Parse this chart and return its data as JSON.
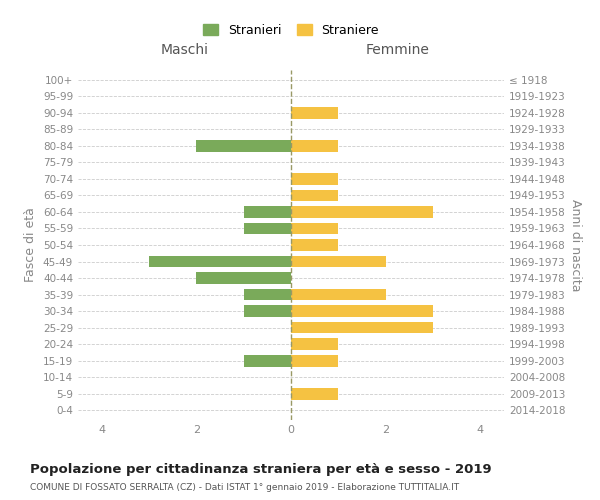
{
  "age_groups": [
    "0-4",
    "5-9",
    "10-14",
    "15-19",
    "20-24",
    "25-29",
    "30-34",
    "35-39",
    "40-44",
    "45-49",
    "50-54",
    "55-59",
    "60-64",
    "65-69",
    "70-74",
    "75-79",
    "80-84",
    "85-89",
    "90-94",
    "95-99",
    "100+"
  ],
  "birth_years": [
    "2014-2018",
    "2009-2013",
    "2004-2008",
    "1999-2003",
    "1994-1998",
    "1989-1993",
    "1984-1988",
    "1979-1983",
    "1974-1978",
    "1969-1973",
    "1964-1968",
    "1959-1963",
    "1954-1958",
    "1949-1953",
    "1944-1948",
    "1939-1943",
    "1934-1938",
    "1929-1933",
    "1924-1928",
    "1919-1923",
    "≤ 1918"
  ],
  "males": [
    0,
    0,
    0,
    1,
    0,
    0,
    1,
    1,
    2,
    3,
    0,
    1,
    1,
    0,
    0,
    0,
    2,
    0,
    0,
    0,
    0
  ],
  "females": [
    0,
    1,
    0,
    1,
    1,
    3,
    3,
    2,
    0,
    2,
    1,
    1,
    3,
    1,
    1,
    0,
    1,
    0,
    1,
    0,
    0
  ],
  "color_male": "#7aaa5a",
  "color_female": "#f5c242",
  "color_dashed": "#999966",
  "xlim": 4.5,
  "title": "Popolazione per cittadinanza straniera per età e sesso - 2019",
  "subtitle": "COMUNE DI FOSSATO SERRALTA (CZ) - Dati ISTAT 1° gennaio 2019 - Elaborazione TUTTITALIA.IT",
  "ylabel_left": "Fasce di età",
  "ylabel_right": "Anni di nascita",
  "legend_male": "Stranieri",
  "legend_female": "Straniere",
  "header_left": "Maschi",
  "header_right": "Femmine"
}
